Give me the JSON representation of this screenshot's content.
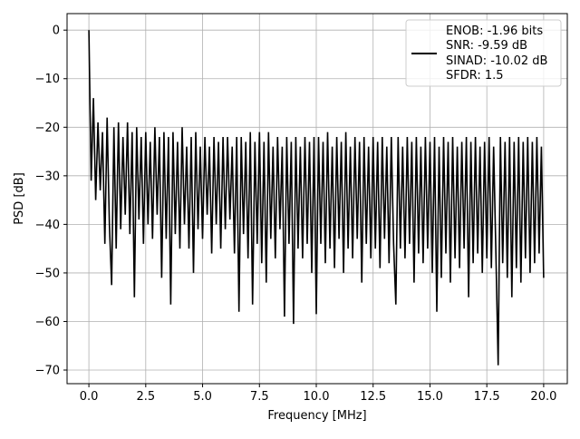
{
  "chart_data": {
    "type": "line",
    "title": "",
    "xlabel": "Frequency [MHz]",
    "ylabel": "PSD [dB]",
    "xlim": [
      -0.96,
      21.04
    ],
    "ylim": [
      -72.8,
      3.4
    ],
    "grid": true,
    "xticks": [
      0.0,
      2.5,
      5.0,
      7.5,
      10.0,
      12.5,
      15.0,
      17.5,
      20.0
    ],
    "xtick_labels": [
      "0.0",
      "2.5",
      "5.0",
      "7.5",
      "10.0",
      "12.5",
      "15.0",
      "17.5",
      "20.0"
    ],
    "yticks": [
      0,
      -10,
      -20,
      -30,
      -40,
      -50,
      -60,
      -70
    ],
    "ytick_labels": [
      "0",
      "−10",
      "−20",
      "−30",
      "−40",
      "−50",
      "−60",
      "−70"
    ],
    "legend": {
      "placement": "top-right",
      "entries": [
        "ENOB: -1.96 bits",
        "SNR: -9.59 dB",
        "SINAD: -10.02 dB",
        "SFDR: 1.5"
      ]
    },
    "series": [
      {
        "name": "PSD",
        "color": "#000000",
        "x_start": 0,
        "x_step": 0.1,
        "values": [
          0,
          -31,
          -14,
          -35,
          -19,
          -33,
          -21,
          -44,
          -18,
          -40,
          -52.5,
          -20,
          -45,
          -19,
          -41,
          -22,
          -38,
          -19,
          -42,
          -21,
          -55,
          -20,
          -39,
          -22,
          -44,
          -21,
          -40,
          -23,
          -43,
          -20,
          -38,
          -22,
          -51,
          -21,
          -43,
          -22,
          -56.5,
          -21,
          -42,
          -23,
          -45,
          -20,
          -40,
          -24,
          -45,
          -22,
          -50,
          -21,
          -41,
          -24,
          -43,
          -22,
          -38,
          -24,
          -46,
          -22,
          -40,
          -23,
          -45,
          -22,
          -41,
          -22,
          -39,
          -24,
          -46,
          -22,
          -58,
          -22,
          -42,
          -23,
          -47,
          -21,
          -56.5,
          -23,
          -44,
          -21,
          -48,
          -23,
          -52,
          -21,
          -43,
          -24,
          -47,
          -22,
          -41,
          -24,
          -59,
          -22,
          -44,
          -23,
          -60.5,
          -22,
          -45,
          -24,
          -47,
          -22,
          -44,
          -23,
          -50,
          -22,
          -58.5,
          -22,
          -44,
          -23,
          -48,
          -21,
          -45,
          -24,
          -49,
          -22,
          -43,
          -23,
          -50,
          -21,
          -45,
          -24,
          -47,
          -22,
          -43,
          -23,
          -52,
          -22,
          -44,
          -24,
          -47,
          -22,
          -45,
          -23,
          -49,
          -22,
          -43,
          -24,
          -48,
          -22,
          -44,
          -56.5,
          -22,
          -45,
          -24,
          -47,
          -22,
          -44,
          -23,
          -52,
          -22,
          -46,
          -24,
          -48,
          -22,
          -45,
          -23,
          -50,
          -22,
          -58,
          -24,
          -51,
          -22,
          -46,
          -23,
          -52,
          -22,
          -47,
          -24,
          -49,
          -23,
          -45,
          -22,
          -55,
          -23,
          -48,
          -22,
          -46,
          -24,
          -50,
          -23,
          -47,
          -22,
          -49,
          -24,
          -46,
          -69,
          -22,
          -48,
          -23,
          -51,
          -22,
          -55,
          -23,
          -49,
          -22,
          -52,
          -23,
          -47,
          -22,
          -50,
          -23,
          -48,
          -22,
          -46,
          -24,
          -51
        ]
      }
    ]
  }
}
